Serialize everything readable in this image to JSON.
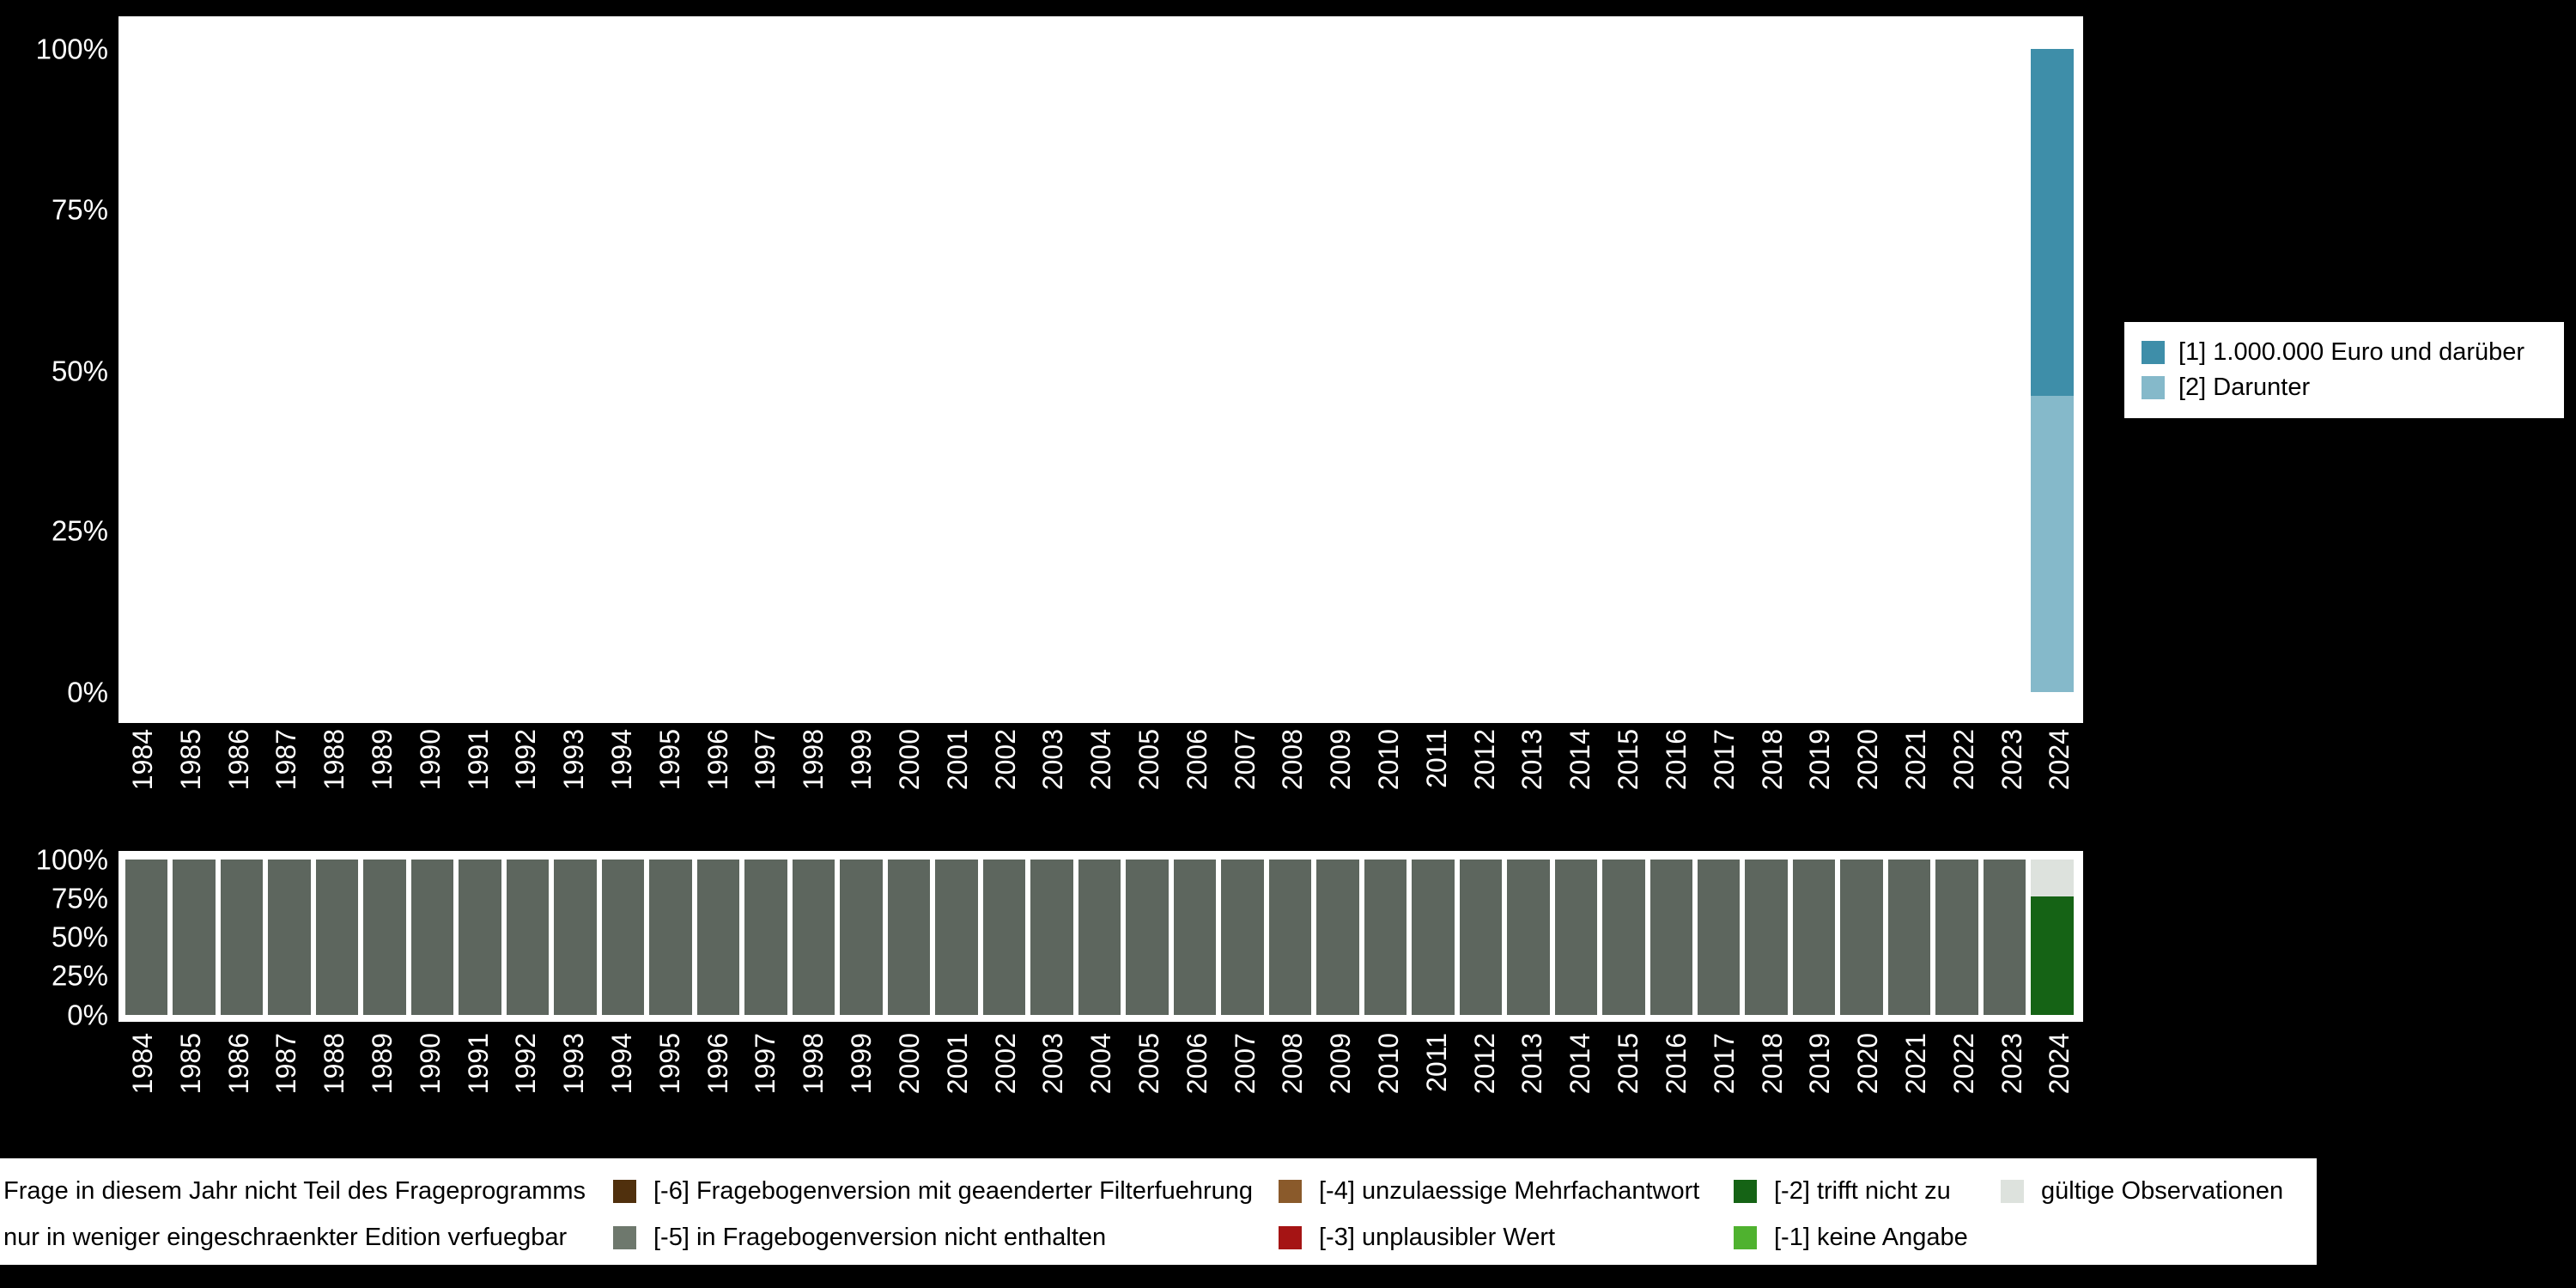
{
  "colors": {
    "background": "#000000",
    "panel": "#ffffff",
    "axis_text": "#ffffff",
    "legend_text": "#000000"
  },
  "top_chart": {
    "legend": [
      {
        "label": "[1] 1.000.000 Euro und darüber",
        "color": "#3e8ea9"
      },
      {
        "label": "[2] Darunter",
        "color": "#85b9ca"
      }
    ]
  },
  "missing_legend": {
    "rows": [
      [
        {
          "label": "Frage in diesem Jahr nicht Teil des Frageprogramms",
          "color": null
        },
        {
          "label": "[-6] Fragebogenversion mit geaenderter Filterfuehrung",
          "color": "#50300d"
        },
        {
          "label": "[-4] unzulaessige Mehrfachantwort",
          "color": "#8a5a2b"
        },
        {
          "label": "[-2] trifft nicht zu",
          "color": "#156315"
        },
        {
          "label": "gültige Observationen",
          "color": "#dde2dd"
        }
      ],
      [
        {
          "label": "nur in weniger eingeschraenkter Edition verfuegbar",
          "color": null
        },
        {
          "label": "[-5] in Fragebogenversion nicht enthalten",
          "color": "#6e786d"
        },
        {
          "label": "[-3] unplausibler Wert",
          "color": "#a51414"
        },
        {
          "label": "[-1] keine Angabe",
          "color": "#4fb22f"
        }
      ]
    ]
  },
  "chart_data": [
    {
      "type": "bar",
      "stacked": true,
      "title": "",
      "xlabel": "",
      "ylabel": "",
      "ylim": [
        0,
        100
      ],
      "y_ticks": [
        "100%",
        "75%",
        "50%",
        "25%",
        "0%"
      ],
      "legend_position": "right",
      "categories": [
        "1984",
        "1985",
        "1986",
        "1987",
        "1988",
        "1989",
        "1990",
        "1991",
        "1992",
        "1993",
        "1994",
        "1995",
        "1996",
        "1997",
        "1998",
        "1999",
        "2000",
        "2001",
        "2002",
        "2003",
        "2004",
        "2005",
        "2006",
        "2007",
        "2008",
        "2009",
        "2010",
        "2011",
        "2012",
        "2013",
        "2014",
        "2015",
        "2016",
        "2017",
        "2018",
        "2019",
        "2020",
        "2021",
        "2022",
        "2023",
        "2024"
      ],
      "series": [
        {
          "name": "[1] 1.000.000 Euro und darüber",
          "color": "#3e8ea9",
          "values": [
            0,
            0,
            0,
            0,
            0,
            0,
            0,
            0,
            0,
            0,
            0,
            0,
            0,
            0,
            0,
            0,
            0,
            0,
            0,
            0,
            0,
            0,
            0,
            0,
            0,
            0,
            0,
            0,
            0,
            0,
            0,
            0,
            0,
            0,
            0,
            0,
            0,
            0,
            0,
            0,
            54
          ]
        },
        {
          "name": "[2] Darunter",
          "color": "#85b9ca",
          "values": [
            0,
            0,
            0,
            0,
            0,
            0,
            0,
            0,
            0,
            0,
            0,
            0,
            0,
            0,
            0,
            0,
            0,
            0,
            0,
            0,
            0,
            0,
            0,
            0,
            0,
            0,
            0,
            0,
            0,
            0,
            0,
            0,
            0,
            0,
            0,
            0,
            0,
            0,
            0,
            0,
            46
          ]
        }
      ]
    },
    {
      "type": "bar",
      "stacked": true,
      "title": "",
      "xlabel": "",
      "ylabel": "",
      "ylim": [
        0,
        100
      ],
      "y_ticks": [
        "100%",
        "75%",
        "50%",
        "25%",
        "0%"
      ],
      "categories": [
        "1984",
        "1985",
        "1986",
        "1987",
        "1988",
        "1989",
        "1990",
        "1991",
        "1992",
        "1993",
        "1994",
        "1995",
        "1996",
        "1997",
        "1998",
        "1999",
        "2000",
        "2001",
        "2002",
        "2003",
        "2004",
        "2005",
        "2006",
        "2007",
        "2008",
        "2009",
        "2010",
        "2011",
        "2012",
        "2013",
        "2014",
        "2015",
        "2016",
        "2017",
        "2018",
        "2019",
        "2020",
        "2021",
        "2022",
        "2023",
        "2024"
      ],
      "series": [
        {
          "name": "gültige Observationen",
          "color": "#dde2dd",
          "values": [
            0,
            0,
            0,
            0,
            0,
            0,
            0,
            0,
            0,
            0,
            0,
            0,
            0,
            0,
            0,
            0,
            0,
            0,
            0,
            0,
            0,
            0,
            0,
            0,
            0,
            0,
            0,
            0,
            0,
            0,
            0,
            0,
            0,
            0,
            0,
            0,
            0,
            0,
            0,
            0,
            24
          ]
        },
        {
          "name": "[-2] trifft nicht zu",
          "color": "#156315",
          "values": [
            0,
            0,
            0,
            0,
            0,
            0,
            0,
            0,
            0,
            0,
            0,
            0,
            0,
            0,
            0,
            0,
            0,
            0,
            0,
            0,
            0,
            0,
            0,
            0,
            0,
            0,
            0,
            0,
            0,
            0,
            0,
            0,
            0,
            0,
            0,
            0,
            0,
            0,
            0,
            0,
            76
          ]
        },
        {
          "name": "Frage in diesem Jahr nicht Teil des Frageprogramms",
          "color": "#5d665e",
          "values": [
            100,
            100,
            100,
            100,
            100,
            100,
            100,
            100,
            100,
            100,
            100,
            100,
            100,
            100,
            100,
            100,
            100,
            100,
            100,
            100,
            100,
            100,
            100,
            100,
            100,
            100,
            100,
            100,
            100,
            100,
            100,
            100,
            100,
            100,
            100,
            100,
            100,
            100,
            100,
            100,
            0
          ]
        }
      ]
    }
  ]
}
